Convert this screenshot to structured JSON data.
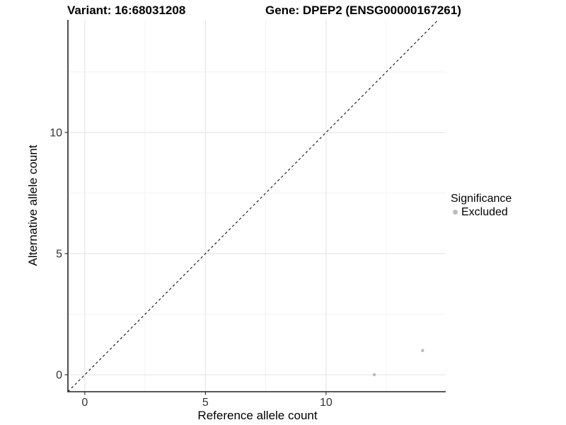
{
  "chart_data": {
    "type": "scatter",
    "titles": {
      "left": "Variant: 16:68031208",
      "right": "Gene: DPEP2 (ENSG00000167261)"
    },
    "xlabel": "Reference allele count",
    "ylabel": "Alternative allele count",
    "xlim": [
      -0.7,
      14.96
    ],
    "ylim": [
      -0.7,
      14.65
    ],
    "x_major_ticks": [
      0,
      5,
      10
    ],
    "x_minor_ticks": [
      2.5,
      7.5,
      12.5
    ],
    "y_major_ticks": [
      0,
      5,
      10
    ],
    "y_minor_ticks": [
      2.5,
      7.5,
      12.5
    ],
    "grid": true,
    "identity_line": {
      "type": "abline",
      "intercept": 0,
      "slope": 1,
      "style": "dashed",
      "color": "#111111"
    },
    "series": [
      {
        "name": "Excluded",
        "color": "#bdbdbd",
        "points": [
          {
            "x": 12,
            "y": 0
          },
          {
            "x": 14,
            "y": 1
          }
        ]
      }
    ],
    "legend": {
      "title": "Significance",
      "position": "right",
      "items": [
        {
          "label": "Excluded",
          "color": "#bdbdbd",
          "marker": "circle"
        }
      ]
    },
    "style": {
      "background": "#ffffff",
      "grid_major_color": "#e5e5e5",
      "grid_minor_color": "#f1f1f1",
      "axis_line_color": "#222222",
      "tick_color": "#333333",
      "tick_label_color": "#333333",
      "point_radius": 2.3
    }
  }
}
